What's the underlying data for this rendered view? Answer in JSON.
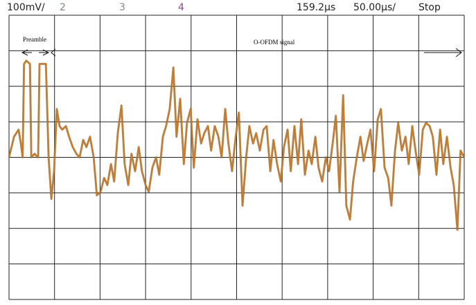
{
  "toolbar": {
    "channel_1": "100mV/",
    "channel_2": "2",
    "channel_3": "3",
    "channel_4": "4",
    "position": "159.2µs",
    "timebase": "50.00µs/",
    "state": "Stop"
  },
  "chart_data": {
    "type": "line",
    "annotations": [
      "Preamble",
      "O-OFDM signal"
    ],
    "color": "#cc7a22",
    "grid": true,
    "xlim": [
      0,
      10
    ],
    "xticks": [
      0,
      1,
      2,
      3,
      4,
      5,
      6,
      7,
      8,
      9,
      10
    ],
    "ylim": [
      -4,
      4
    ],
    "yticks": [
      -4,
      -3,
      -2,
      -1,
      0,
      1,
      2,
      3,
      4
    ],
    "x": [
      0,
      0.11,
      0.21,
      0.26,
      0.3,
      0.33,
      0.38,
      0.46,
      0.49,
      0.56,
      0.64,
      0.67,
      0.72,
      0.81,
      0.87,
      0.93,
      0.99,
      1.05,
      1.11,
      1.17,
      1.25,
      1.32,
      1.4,
      1.48,
      1.55,
      1.63,
      1.7,
      1.78,
      1.86,
      1.93,
      2.01,
      2.09,
      2.16,
      2.24,
      2.31,
      2.39,
      2.47,
      2.54,
      2.62,
      2.69,
      2.77,
      2.85,
      2.92,
      3.0,
      3.07,
      3.15,
      3.23,
      3.3,
      3.38,
      3.45,
      3.53,
      3.61,
      3.68,
      3.76,
      3.84,
      3.91,
      3.99,
      4.06,
      4.14,
      4.22,
      4.29,
      4.37,
      4.44,
      4.52,
      4.6,
      4.67,
      4.75,
      4.82,
      4.9,
      4.98,
      5.05,
      5.13,
      5.21,
      5.28,
      5.36,
      5.43,
      5.51,
      5.59,
      5.66,
      5.74,
      5.81,
      5.89,
      5.97,
      6.04,
      6.12,
      6.19,
      6.27,
      6.35,
      6.42,
      6.5,
      6.58,
      6.65,
      6.73,
      6.8,
      6.88,
      6.96,
      7.03,
      7.11,
      7.18,
      7.26,
      7.34,
      7.41,
      7.49,
      7.56,
      7.64,
      7.72,
      7.79,
      7.87,
      7.94,
      8.02,
      8.1,
      8.17,
      8.25,
      8.33,
      8.4,
      8.48,
      8.55,
      8.63,
      8.71,
      8.78,
      8.86,
      8.93,
      9.01,
      9.09,
      9.16,
      9.24,
      9.31,
      9.39,
      9.47,
      9.54,
      9.62,
      9.7,
      9.77,
      9.85,
      9.92,
      10
    ],
    "values": [
      0,
      0.58,
      0.78,
      0.39,
      0,
      2.63,
      2.72,
      2.63,
      0,
      0.1,
      0,
      2.63,
      2.63,
      2.63,
      0,
      -1.17,
      -0.39,
      1.36,
      0.88,
      0.78,
      0.88,
      0.58,
      0.29,
      0.1,
      0,
      0.49,
      0.29,
      0.58,
      0,
      -1.07,
      -0.97,
      -0.58,
      -0.78,
      -0.19,
      -0.68,
      0.68,
      1.46,
      -0.19,
      -0.78,
      0.1,
      -0.39,
      0.29,
      -0.39,
      -0.78,
      -0.97,
      -0.29,
      0,
      -0.49,
      0.58,
      0.88,
      1.36,
      2.53,
      0.58,
      1.65,
      -0.19,
      0.97,
      1.36,
      -0.29,
      1.07,
      0.39,
      0.68,
      0.88,
      0.19,
      0.88,
      0.58,
      0,
      1.36,
      0.39,
      -0.39,
      0.58,
      1.26,
      -1.36,
      0,
      0.88,
      0.39,
      0.68,
      0.19,
      0.78,
      0.88,
      -0.39,
      0.49,
      -0.19,
      -0.68,
      0.29,
      0.78,
      -0.39,
      0.88,
      -0.19,
      1.07,
      -0.49,
      0.19,
      -0.19,
      0.58,
      -0.29,
      -0.68,
      0,
      -0.39,
      0.39,
      1.17,
      -0.97,
      1.75,
      -1.36,
      -1.75,
      -0.68,
      0,
      0.58,
      -0.1,
      0.39,
      0.78,
      -0.39,
      1.07,
      1.36,
      -0.29,
      -0.58,
      -1.36,
      0.19,
      0.97,
      0.19,
      0.58,
      -0.19,
      0.88,
      0.19,
      -0.49,
      0.78,
      0.97,
      0.88,
      0.58,
      -0.49,
      0.78,
      -0.19,
      0.58,
      -0.29,
      -0.78,
      -2.04,
      0.19,
      0
    ]
  }
}
